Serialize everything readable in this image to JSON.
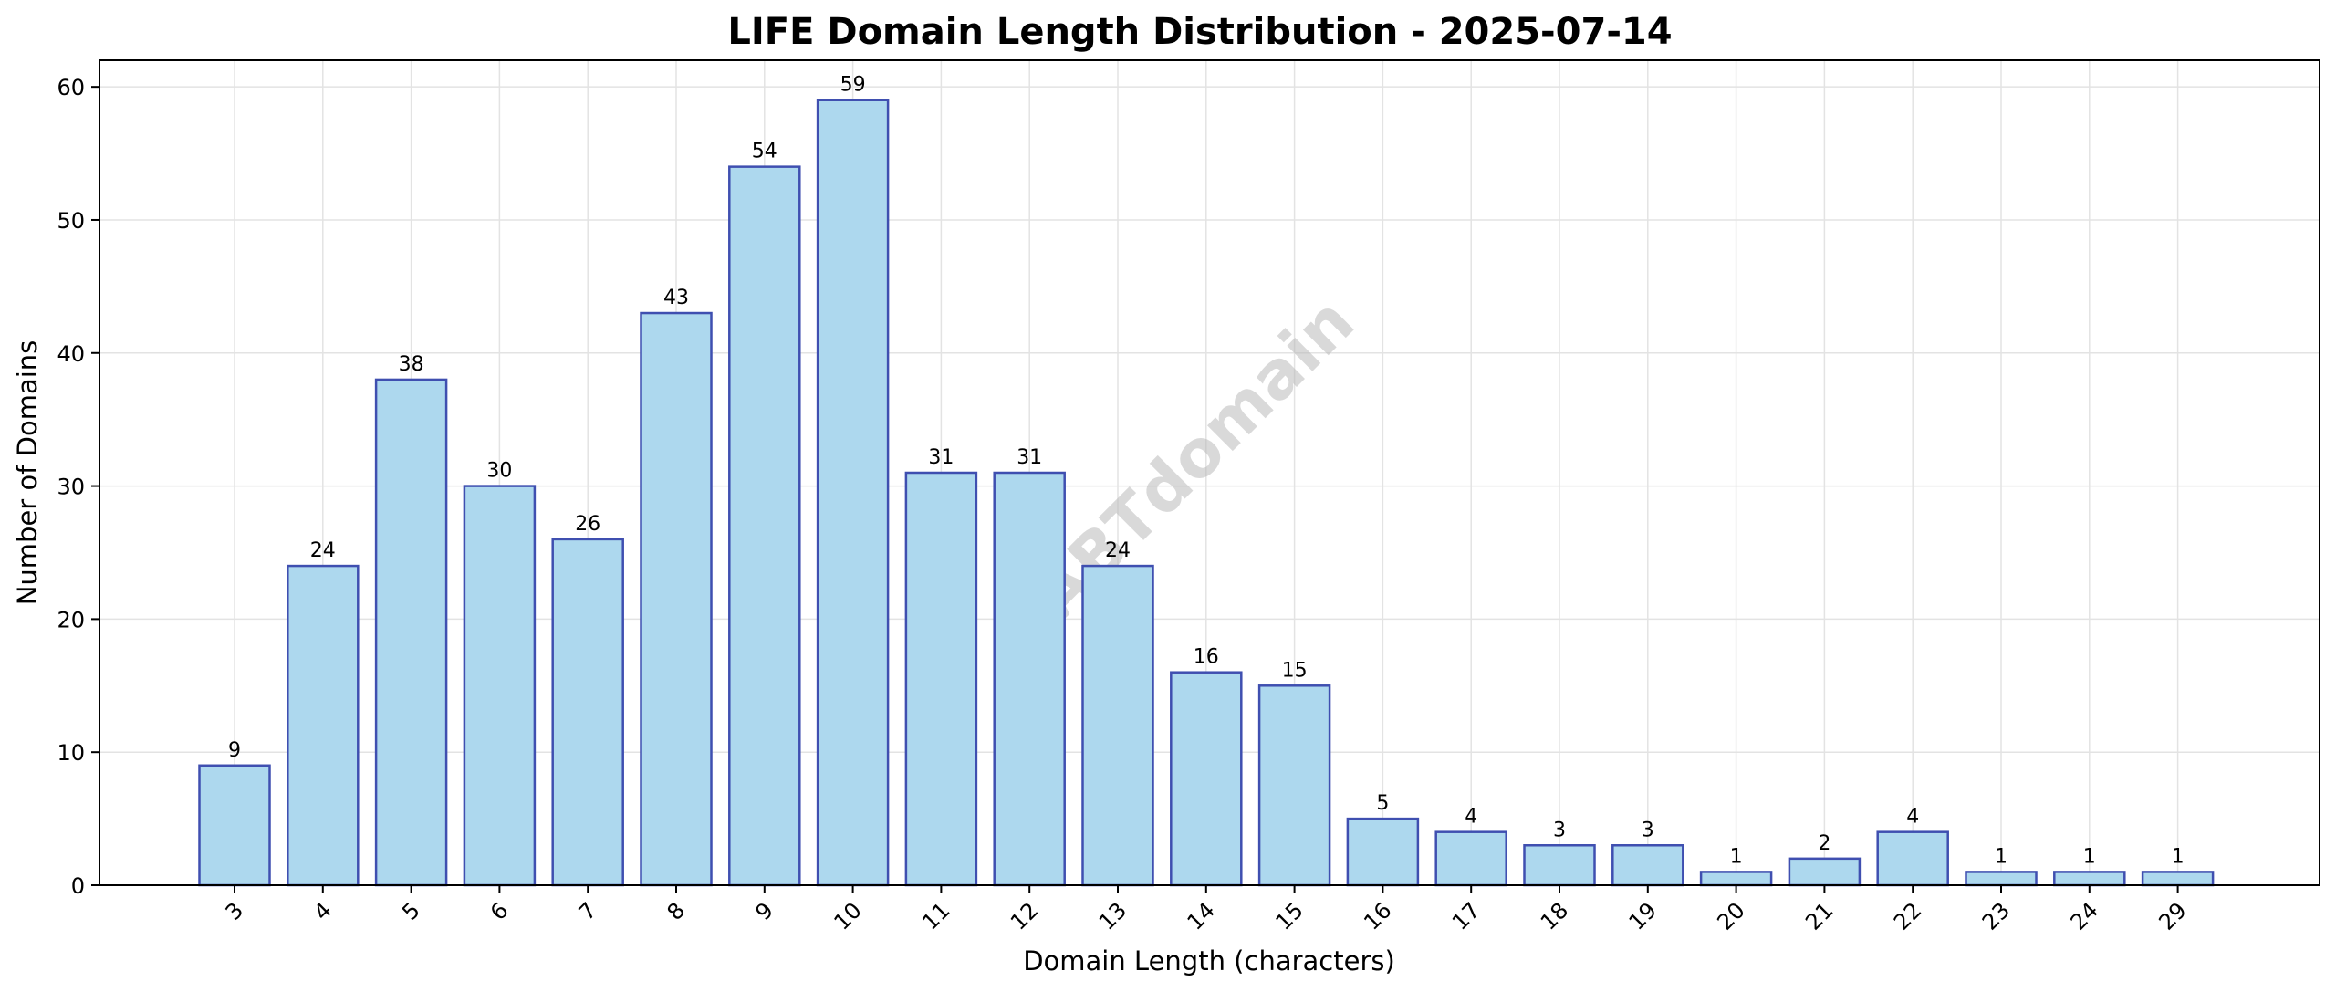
{
  "chart_data": {
    "type": "bar",
    "title": "LIFE Domain Length Distribution - 2025-07-14",
    "xlabel": "Domain Length (characters)",
    "ylabel": "Number of Domains",
    "categories": [
      "3",
      "4",
      "5",
      "6",
      "7",
      "8",
      "9",
      "10",
      "11",
      "12",
      "13",
      "14",
      "15",
      "16",
      "17",
      "18",
      "19",
      "20",
      "21",
      "22",
      "23",
      "24",
      "29"
    ],
    "values": [
      9,
      24,
      38,
      30,
      26,
      43,
      54,
      59,
      31,
      31,
      24,
      16,
      15,
      5,
      4,
      3,
      3,
      1,
      2,
      4,
      1,
      1,
      1
    ],
    "ylim": [
      0,
      62
    ],
    "yticks": [
      0,
      10,
      20,
      30,
      40,
      50,
      60
    ],
    "grid": true,
    "watermark": "ABTdomain",
    "colors": {
      "bar_fill": "#add8ee",
      "bar_edge": "#3f4fb0"
    }
  }
}
